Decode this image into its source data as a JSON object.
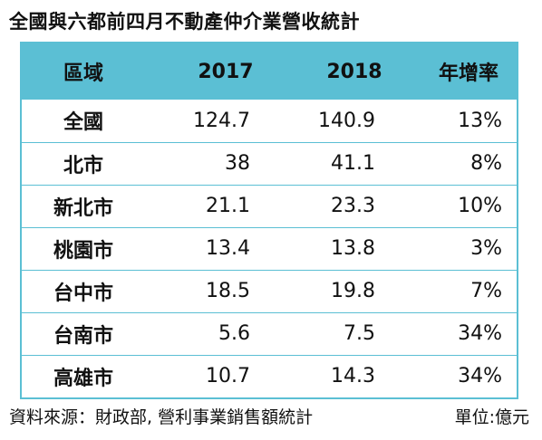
{
  "title": "全國與六都前四月不動產仲介業營收統計",
  "table": {
    "headers": [
      "區域",
      "2017",
      "2018",
      "年增率"
    ],
    "rows": [
      {
        "region": "全國",
        "y2017": "124.7",
        "y2018": "140.9",
        "growth": "13%"
      },
      {
        "region": "北市",
        "y2017": "38",
        "y2018": "41.1",
        "growth": "8%"
      },
      {
        "region": "新北市",
        "y2017": "21.1",
        "y2018": "23.3",
        "growth": "10%"
      },
      {
        "region": "桃園市",
        "y2017": "13.4",
        "y2018": "13.8",
        "growth": "3%"
      },
      {
        "region": "台中市",
        "y2017": "18.5",
        "y2018": "19.8",
        "growth": "7%"
      },
      {
        "region": "台南市",
        "y2017": "5.6",
        "y2018": "7.5",
        "growth": "34%"
      },
      {
        "region": "高雄市",
        "y2017": "10.7",
        "y2018": "14.3",
        "growth": "34%"
      }
    ]
  },
  "footer": {
    "source": "資料來源：財政部, 營利事業銷售額統計",
    "unit": "單位:億元"
  },
  "colors": {
    "accent": "#5bbfd4",
    "text": "#111111",
    "background": "#ffffff"
  }
}
